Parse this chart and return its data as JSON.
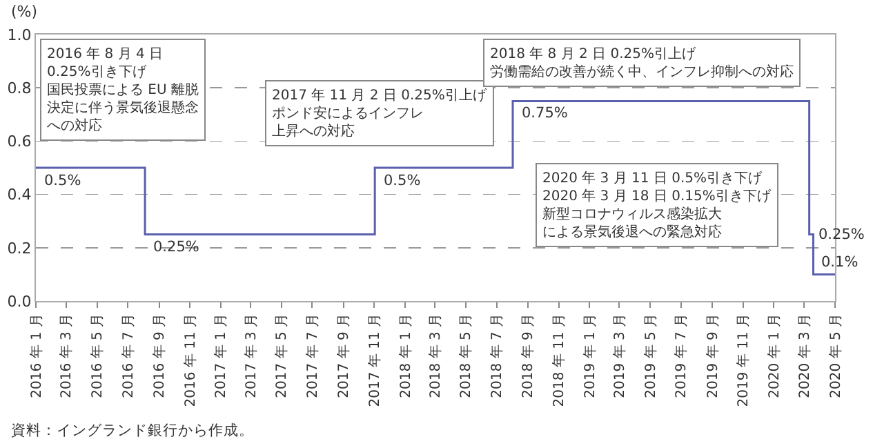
{
  "chart_data": {
    "type": "step",
    "ylabel": "(%)",
    "x": [
      "2016-01-01",
      "2016-08-04",
      "2017-11-02",
      "2018-08-02",
      "2020-03-11",
      "2020-03-19",
      "2020-05-01"
    ],
    "values": [
      0.5,
      0.25,
      0.5,
      0.75,
      0.25,
      0.1,
      0.1
    ],
    "value_labels": [
      "0.5%",
      "0.25%",
      "0.5%",
      "0.75%",
      "0.25%",
      "0.1%",
      null
    ],
    "color": "#5a5fae",
    "xlim": [
      "2016-01-01",
      "2020-05-01"
    ],
    "xticks": [
      {
        "value": "2016-01",
        "label": "2016 年 1 月"
      },
      {
        "value": "2016-03",
        "label": "2016 年 3 月"
      },
      {
        "value": "2016-05",
        "label": "2016 年 5 月"
      },
      {
        "value": "2016-07",
        "label": "2016 年 7 月"
      },
      {
        "value": "2016-09",
        "label": "2016 年 9 月"
      },
      {
        "value": "2016-11",
        "label": "2016 年 11 月"
      },
      {
        "value": "2017-01",
        "label": "2017 年 1 月"
      },
      {
        "value": "2017-03",
        "label": "2017 年 3 月"
      },
      {
        "value": "2017-05",
        "label": "2017 年 5 月"
      },
      {
        "value": "2017-07",
        "label": "2017 年 7 月"
      },
      {
        "value": "2017-09",
        "label": "2017 年 9 月"
      },
      {
        "value": "2017-11",
        "label": "2017 年 11 月"
      },
      {
        "value": "2018-01",
        "label": "2018 年 1 月"
      },
      {
        "value": "2018-03",
        "label": "2018 年 3 月"
      },
      {
        "value": "2018-05",
        "label": "2018 年 5 月"
      },
      {
        "value": "2018-07",
        "label": "2018 年 7 月"
      },
      {
        "value": "2018-09",
        "label": "2018 年 9 月"
      },
      {
        "value": "2018-11",
        "label": "2018 年 11 月"
      },
      {
        "value": "2019-01",
        "label": "2019 年 1 月"
      },
      {
        "value": "2019-03",
        "label": "2019 年 3 月"
      },
      {
        "value": "2019-05",
        "label": "2019 年 5 月"
      },
      {
        "value": "2019-07",
        "label": "2019 年 7 月"
      },
      {
        "value": "2019-09",
        "label": "2019 年 9 月"
      },
      {
        "value": "2019-11",
        "label": "2019 年 11 月"
      },
      {
        "value": "2020-01",
        "label": "2020 年 1 月"
      },
      {
        "value": "2020-03",
        "label": "2020 年 3 月"
      },
      {
        "value": "2020-05",
        "label": "2020 年 5 月"
      }
    ],
    "ylim": [
      0,
      1
    ],
    "yticks": [
      {
        "value": 0,
        "label": "0.0"
      },
      0.2,
      0.4,
      0.6,
      0.8,
      {
        "value": 1,
        "label": "1.0"
      }
    ],
    "grid": "y",
    "legend": false,
    "marker": "none",
    "line_style": "solid",
    "annotations": [
      "2016 年 8 月 4 日\n0.25%引き下げ",
      "国民投票による EU 離脱決定に伴う景気後退懸念への対応",
      "2017 年 11 月 2 日 0.25%引上げ",
      "ポンド安によるインフレ上昇への対応",
      "2018 年 8 月 2 日 0.25%引上げ",
      "労働需給の改善が続く中、インフレ抑制への対応",
      "2020 年 3 月 11 日 0.5%引き下げ\n2020 年 3 月 18 日 0.15%引き下げ",
      "新型コロナウィルス感染拡大による景気後退への緊急対応",
      "資料：イングランド銀行から作成。"
    ]
  }
}
